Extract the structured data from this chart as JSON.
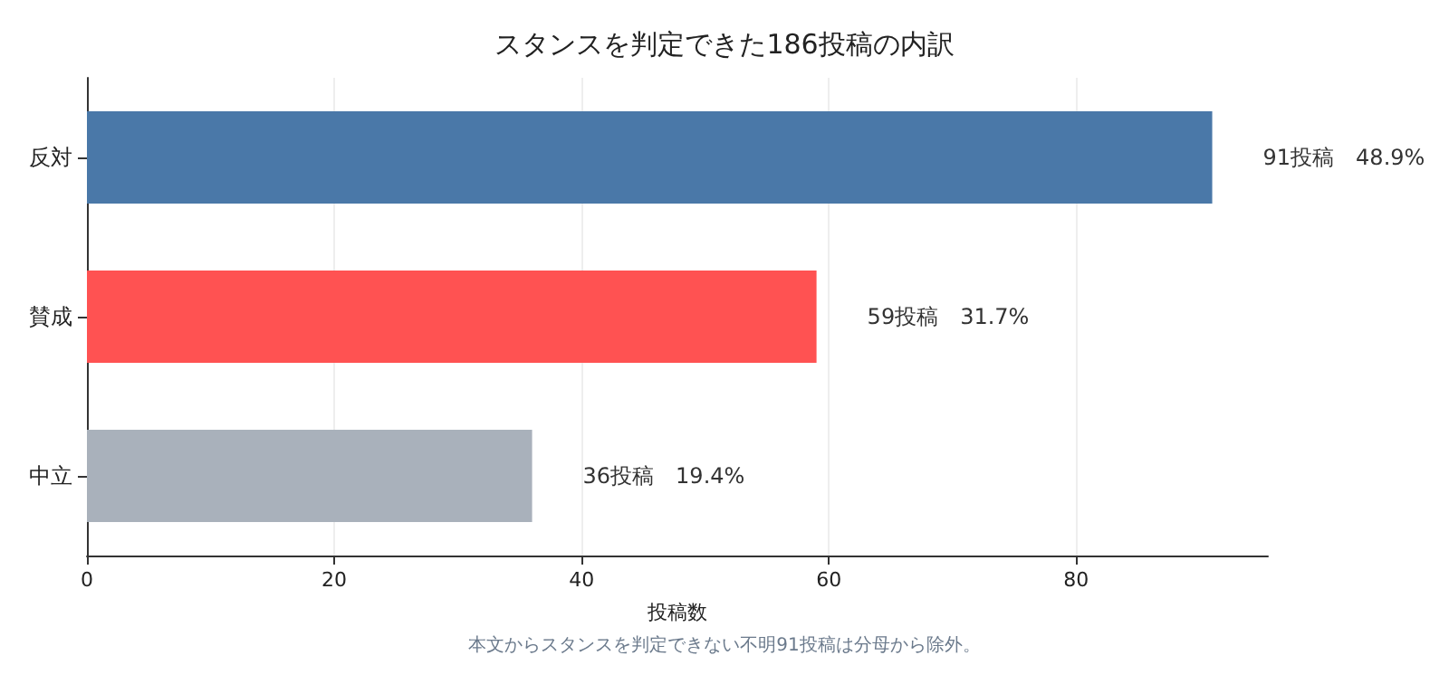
{
  "chart_data": {
    "type": "bar",
    "orientation": "horizontal",
    "title": "スタンスを判定できた186投稿の内訳",
    "xlabel": "投稿数",
    "categories": [
      "反対",
      "賛成",
      "中立"
    ],
    "values": [
      91,
      59,
      36
    ],
    "colors": [
      "#4a78a8",
      "#ff5252",
      "#a9b1bb"
    ],
    "value_labels": [
      "91投稿　48.9%",
      "59投稿　31.7%",
      "36投稿　19.4%"
    ],
    "xlim": [
      0,
      95.5
    ],
    "xticks": [
      0,
      20,
      40,
      60,
      80
    ],
    "grid": "x",
    "annotations": [
      "本文からスタンスを判定できない不明91投稿は分母から除外。"
    ]
  }
}
